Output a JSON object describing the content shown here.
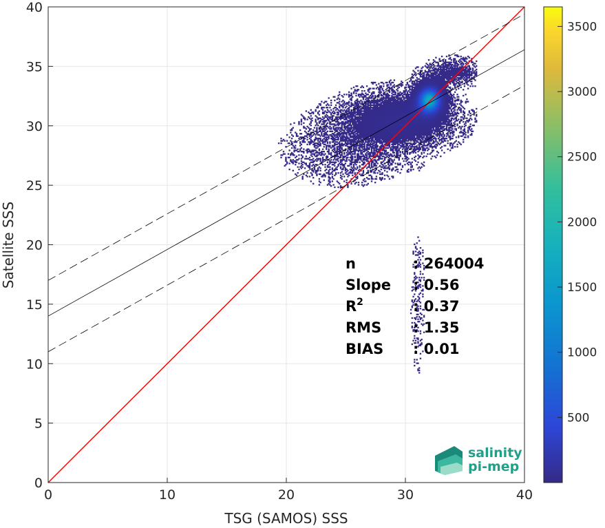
{
  "chart_data": {
    "type": "heatmap",
    "xlabel": "TSG (SAMOS) SSS",
    "ylabel": "Satellite SSS",
    "xlim": [
      0,
      40
    ],
    "ylim": [
      0,
      40
    ],
    "xticks": [
      0,
      10,
      20,
      30,
      40
    ],
    "yticks": [
      0,
      5,
      10,
      15,
      20,
      25,
      30,
      35,
      40
    ],
    "grid": true,
    "colorbar": {
      "range": [
        0,
        3650
      ],
      "ticks": [
        500,
        1000,
        1500,
        2000,
        2500,
        3000,
        3500
      ],
      "colormap": "parula"
    },
    "reference_line": {
      "name": "1:1",
      "color": "#ff0000",
      "x": [
        0,
        40
      ],
      "y": [
        0,
        40
      ]
    },
    "fit_line": {
      "color": "#000000",
      "intercept": 14.0,
      "slope": 0.56
    },
    "fit_bounds": {
      "color": "#000000",
      "style": "dashed",
      "offset": 3.0
    },
    "density_clusters": [
      {
        "x": 32.0,
        "y": 32.2,
        "sx": 0.8,
        "sy": 0.9,
        "weight": 1.0
      },
      {
        "x": 29.5,
        "y": 30.5,
        "sx": 3.0,
        "sy": 1.5,
        "weight": 0.35
      },
      {
        "x": 34.0,
        "y": 34.5,
        "sx": 1.5,
        "sy": 0.7,
        "weight": 0.25
      },
      {
        "x": 25.0,
        "y": 28.0,
        "sx": 3.5,
        "sy": 2.0,
        "weight": 0.12
      },
      {
        "x": 31.0,
        "y": 15.0,
        "sx": 0.6,
        "sy": 6.0,
        "weight": 0.05
      }
    ],
    "stats": [
      {
        "label": "n",
        "value": ": 264004"
      },
      {
        "label": "Slope",
        "value": ": 0.56"
      },
      {
        "label": "R",
        "sup": "2",
        "value": ": 0.37"
      },
      {
        "label": "RMS",
        "value": ": 1.35"
      },
      {
        "label": "BIAS",
        "value": ": 0.01"
      }
    ]
  },
  "logo": {
    "line1": "salinity",
    "line2": "pi-mep"
  },
  "colors": {
    "background": "#ffffff",
    "grid": "#e6e6e6",
    "axis": "#262626",
    "low_density": "#3b2f9a",
    "high_density": "#f9fb0e"
  }
}
